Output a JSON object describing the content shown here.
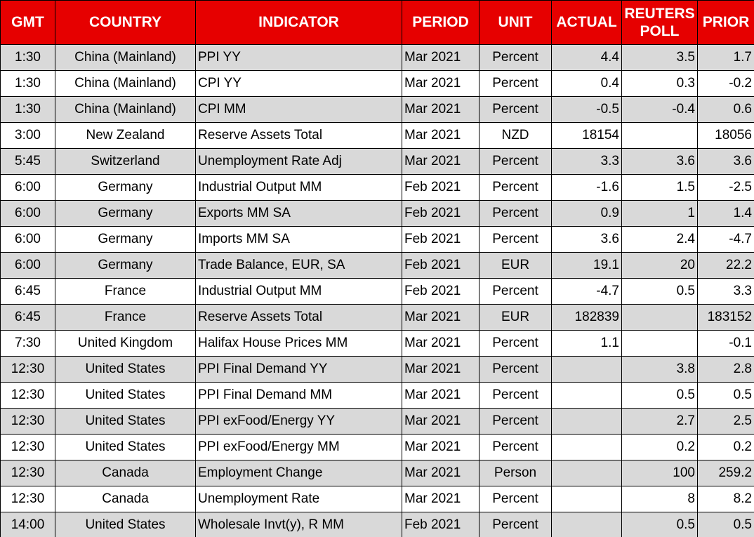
{
  "table": {
    "headers": [
      "GMT",
      "COUNTRY",
      "INDICATOR",
      "PERIOD",
      "UNIT",
      "ACTUAL",
      "REUTERS POLL",
      "PRIOR"
    ],
    "rows": [
      [
        "1:30",
        "China (Mainland)",
        "PPI YY",
        "Mar 2021",
        "Percent",
        "4.4",
        "3.5",
        "1.7"
      ],
      [
        "1:30",
        "China (Mainland)",
        "CPI YY",
        "Mar 2021",
        "Percent",
        "0.4",
        "0.3",
        "-0.2"
      ],
      [
        "1:30",
        "China (Mainland)",
        "CPI MM",
        "Mar 2021",
        "Percent",
        "-0.5",
        "-0.4",
        "0.6"
      ],
      [
        "3:00",
        "New Zealand",
        "Reserve Assets Total",
        "Mar 2021",
        "NZD",
        "18154",
        null,
        "18056"
      ],
      [
        "5:45",
        "Switzerland",
        "Unemployment Rate Adj",
        "Mar 2021",
        "Percent",
        "3.3",
        "3.6",
        "3.6"
      ],
      [
        "6:00",
        "Germany",
        "Industrial Output MM",
        "Feb 2021",
        "Percent",
        "-1.6",
        "1.5",
        "-2.5"
      ],
      [
        "6:00",
        "Germany",
        "Exports MM SA",
        "Feb 2021",
        "Percent",
        "0.9",
        "1",
        "1.4"
      ],
      [
        "6:00",
        "Germany",
        "Imports MM SA",
        "Feb 2021",
        "Percent",
        "3.6",
        "2.4",
        "-4.7"
      ],
      [
        "6:00",
        "Germany",
        "Trade Balance, EUR, SA",
        "Feb 2021",
        "EUR",
        "19.1",
        "20",
        "22.2"
      ],
      [
        "6:45",
        "France",
        "Industrial Output MM",
        "Feb 2021",
        "Percent",
        "-4.7",
        "0.5",
        "3.3"
      ],
      [
        "6:45",
        "France",
        "Reserve Assets Total",
        "Mar 2021",
        "EUR",
        "182839",
        null,
        "183152"
      ],
      [
        "7:30",
        "United Kingdom",
        "Halifax House Prices MM",
        "Mar 2021",
        "Percent",
        "1.1",
        null,
        "-0.1"
      ],
      [
        "12:30",
        "United States",
        "PPI Final Demand YY",
        "Mar 2021",
        "Percent",
        null,
        "3.8",
        "2.8"
      ],
      [
        "12:30",
        "United States",
        "PPI Final Demand MM",
        "Mar 2021",
        "Percent",
        null,
        "0.5",
        "0.5"
      ],
      [
        "12:30",
        "United States",
        "PPI exFood/Energy YY",
        "Mar 2021",
        "Percent",
        null,
        "2.7",
        "2.5"
      ],
      [
        "12:30",
        "United States",
        "PPI exFood/Energy MM",
        "Mar 2021",
        "Percent",
        null,
        "0.2",
        "0.2"
      ],
      [
        "12:30",
        "Canada",
        "Employment Change",
        "Mar 2021",
        "Person",
        null,
        "100",
        "259.2"
      ],
      [
        "12:30",
        "Canada",
        "Unemployment Rate",
        "Mar 2021",
        "Percent",
        null,
        "8",
        "8.2"
      ],
      [
        "14:00",
        "United States",
        "Wholesale Invt(y), R MM",
        "Feb 2021",
        "Percent",
        null,
        "0.5",
        "0.5"
      ]
    ]
  }
}
